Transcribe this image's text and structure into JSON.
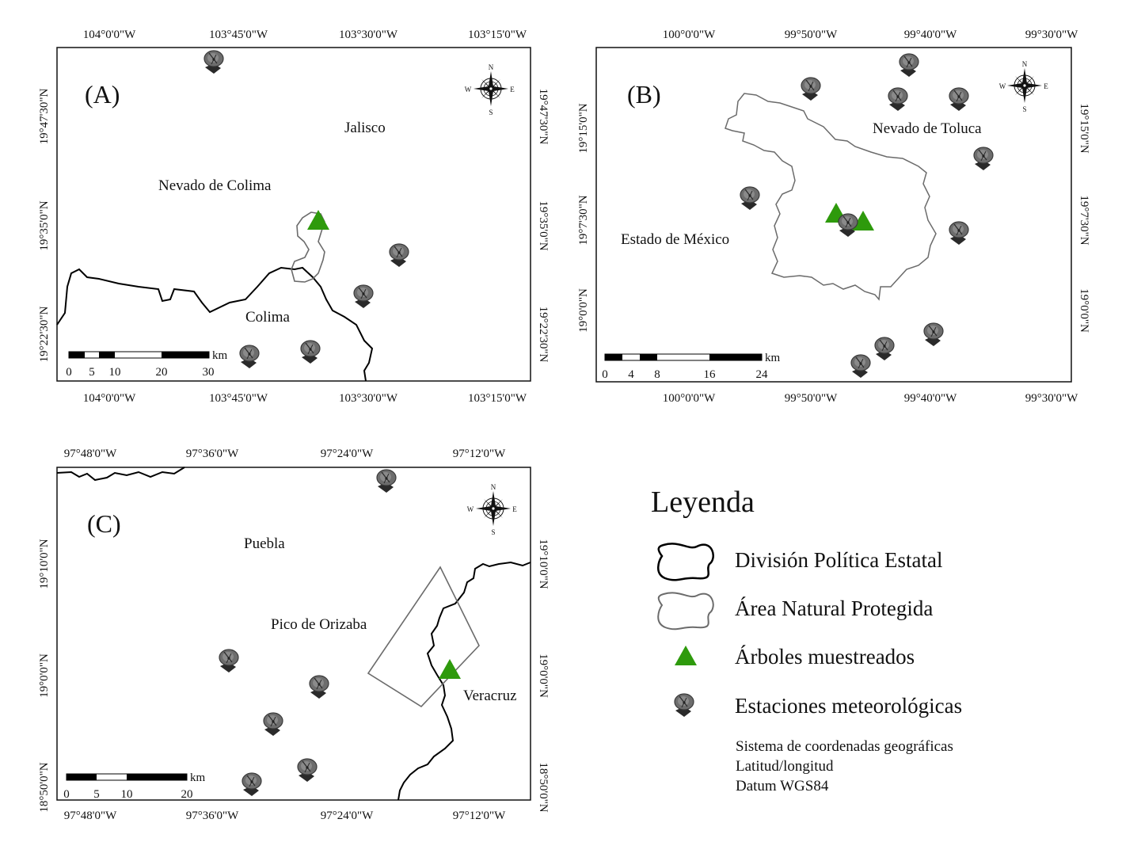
{
  "panels": [
    {
      "letter": "(A)",
      "top_ticks": [
        "104°0'0\"W",
        "103°45'0\"W",
        "103°30'0\"W",
        "103°15'0\"W"
      ],
      "bottom_ticks": [
        "104°0'0\"W",
        "103°45'0\"W",
        "103°30'0\"W",
        "103°15'0\"W"
      ],
      "left_ticks": [
        "19°47'30\"N",
        "19°35'0\"N",
        "19°22'30\"N"
      ],
      "right_ticks": [
        "19°47'30\"N",
        "19°35'0\"N",
        "19°22'30\"N"
      ],
      "labels": [
        "Jalisco",
        "Nevado de Colima",
        "Colima"
      ],
      "scalebar": {
        "unit": "km",
        "ticks": [
          "0",
          "5",
          "10",
          "20",
          "30"
        ]
      }
    },
    {
      "letter": "(B)",
      "top_ticks": [
        "100°0'0\"W",
        "99°50'0\"W",
        "99°40'0\"W",
        "99°30'0\"W"
      ],
      "bottom_ticks": [
        "100°0'0\"W",
        "99°50'0\"W",
        "99°40'0\"W",
        "99°30'0\"W"
      ],
      "left_ticks": [
        "19°15'0\"N",
        "19°7'30\"N",
        "19°0'0\"N"
      ],
      "right_ticks": [
        "19°15'0\"N",
        "19°7'30\"N",
        "19°0'0\"N"
      ],
      "labels": [
        "Nevado de Toluca",
        "Estado de México"
      ],
      "scalebar": {
        "unit": "km",
        "ticks": [
          "0",
          "4",
          "8",
          "16",
          "24"
        ]
      }
    },
    {
      "letter": "(C)",
      "top_ticks": [
        "97°48'0\"W",
        "97°36'0\"W",
        "97°24'0\"W",
        "97°12'0\"W"
      ],
      "bottom_ticks": [
        "97°48'0\"W",
        "97°36'0\"W",
        "97°24'0\"W",
        "97°12'0\"W"
      ],
      "left_ticks": [
        "19°10'0\"N",
        "19°0'0\"N",
        "18°50'0\"N"
      ],
      "right_ticks": [
        "19°10'0\"N",
        "19°0'0\"N",
        "18°50'0\"N"
      ],
      "labels": [
        "Puebla",
        "Pico de Orizaba",
        "Veracruz"
      ],
      "scalebar": {
        "unit": "km",
        "ticks": [
          "0",
          "5",
          "10",
          "20"
        ]
      }
    }
  ],
  "compass": {
    "n": "N",
    "s": "S",
    "e": "E",
    "w": "W",
    "icon": "compass-rose-icon"
  },
  "legend": {
    "title": "Leyenda",
    "items": [
      {
        "label": "División Política Estatal",
        "icon": "state-boundary-icon",
        "color": "#000000"
      },
      {
        "label": "Área Natural Protegida",
        "icon": "protected-area-icon",
        "color": "#6b6b6b"
      },
      {
        "label": "Árboles muestreados",
        "icon": "sampled-tree-icon",
        "color": "#2e9a0c"
      },
      {
        "label": "Estaciones meteorológicas",
        "icon": "weather-station-icon",
        "color": "#4a4a4a"
      }
    ],
    "notes": [
      "Sistema de coordenadas geográficas",
      "Latitud/longitud",
      "Datum WGS84"
    ]
  },
  "colors": {
    "tree": "#2e9a0c",
    "station": "#4a4a4a",
    "boundary": "#000000",
    "protected_area": "#6b6b6b"
  }
}
